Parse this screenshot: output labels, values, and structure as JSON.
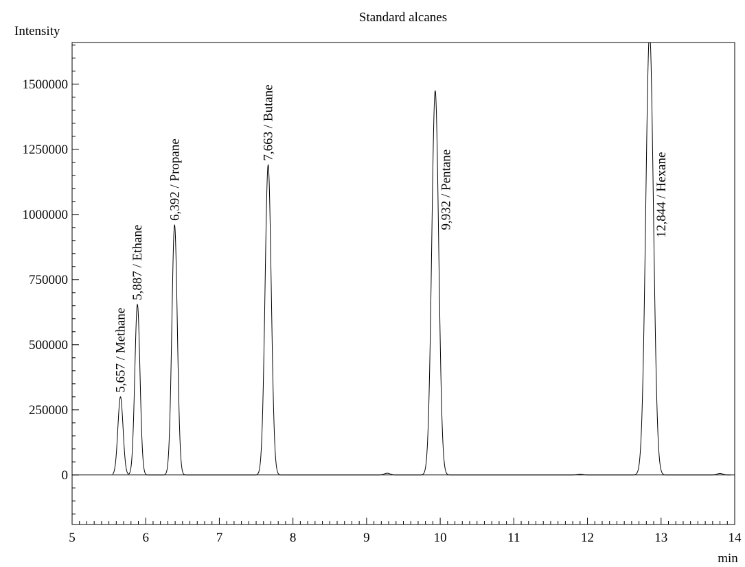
{
  "chart_data": {
    "type": "line",
    "title": "Standard alcanes",
    "xlabel": "min",
    "ylabel": "Intensity",
    "xlim": [
      5,
      14
    ],
    "ylim": [
      -190000,
      1660000
    ],
    "x_ticks": [
      5,
      6,
      7,
      8,
      9,
      10,
      11,
      12,
      13,
      14
    ],
    "y_ticks": [
      0,
      250000,
      500000,
      750000,
      1000000,
      1250000,
      1500000
    ],
    "x_tick_labels": [
      "5",
      "6",
      "7",
      "8",
      "9",
      "10",
      "11",
      "12",
      "13",
      "14"
    ],
    "y_tick_labels": [
      "0",
      "250000",
      "500000",
      "750000",
      "1000000",
      "1250000",
      "1500000"
    ],
    "grid": false,
    "series": [
      {
        "peaks": [
          {
            "rt": 5.657,
            "height": 300000,
            "width": 0.035
          },
          {
            "rt": 5.887,
            "height": 655000,
            "width": 0.035
          },
          {
            "rt": 6.392,
            "height": 960000,
            "width": 0.037
          },
          {
            "rt": 7.663,
            "height": 1190000,
            "width": 0.042
          },
          {
            "rt": 9.28,
            "height": 7000,
            "width": 0.04
          },
          {
            "rt": 9.932,
            "height": 1475000,
            "width": 0.047
          },
          {
            "rt": 11.9,
            "height": 3000,
            "width": 0.04
          },
          {
            "rt": 12.844,
            "height": 1700000,
            "width": 0.052
          },
          {
            "rt": 13.8,
            "height": 6000,
            "width": 0.04
          }
        ]
      }
    ],
    "annotations": [
      {
        "text": "5,657 / Methane",
        "x": 5.657,
        "y": 300000,
        "anchor": "start"
      },
      {
        "text": "5,887 / Ethane",
        "x": 5.887,
        "y": 655000,
        "anchor": "start"
      },
      {
        "text": "6,392 / Propane",
        "x": 6.392,
        "y": 960000,
        "anchor": "start"
      },
      {
        "text": "7,663 / Butane",
        "x": 7.663,
        "y": 1190000,
        "anchor": "start"
      },
      {
        "text": "9,932 / Pentane",
        "x": 10.08,
        "y": 1250000,
        "anchor": "end"
      },
      {
        "text": "12,844 / Hexane",
        "x": 13.0,
        "y": 1240000,
        "anchor": "end"
      }
    ]
  }
}
